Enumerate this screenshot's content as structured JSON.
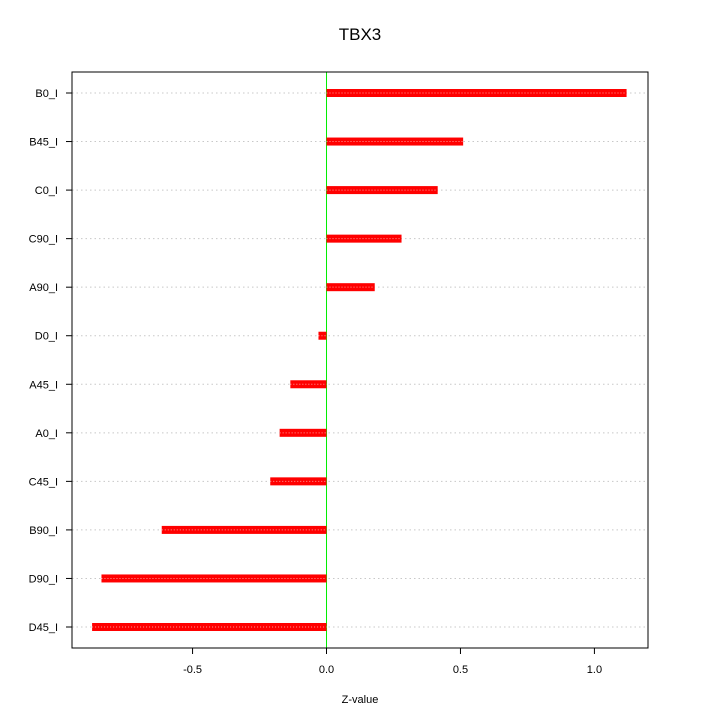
{
  "chart_data": {
    "type": "bar",
    "orientation": "horizontal",
    "title": "TBX3",
    "xlabel": "Z-value",
    "ylabel": "",
    "xlim": [
      -0.95,
      1.2
    ],
    "xticks": [
      -0.5,
      0.0,
      0.5,
      1.0
    ],
    "xtick_labels": [
      "-0.5",
      "0.0",
      "0.5",
      "1.0"
    ],
    "grid": "horizontal dotted",
    "bar_color": "#ff0000",
    "zero_line_color": "#00ee00",
    "categories": [
      "B0_I",
      "B45_I",
      "C0_I",
      "C90_I",
      "A90_I",
      "D0_I",
      "A45_I",
      "A0_I",
      "C45_I",
      "B90_I",
      "D90_I",
      "D45_I"
    ],
    "values": [
      1.12,
      0.51,
      0.415,
      0.28,
      0.18,
      -0.03,
      -0.135,
      -0.175,
      -0.21,
      -0.615,
      -0.84,
      -0.875
    ]
  }
}
